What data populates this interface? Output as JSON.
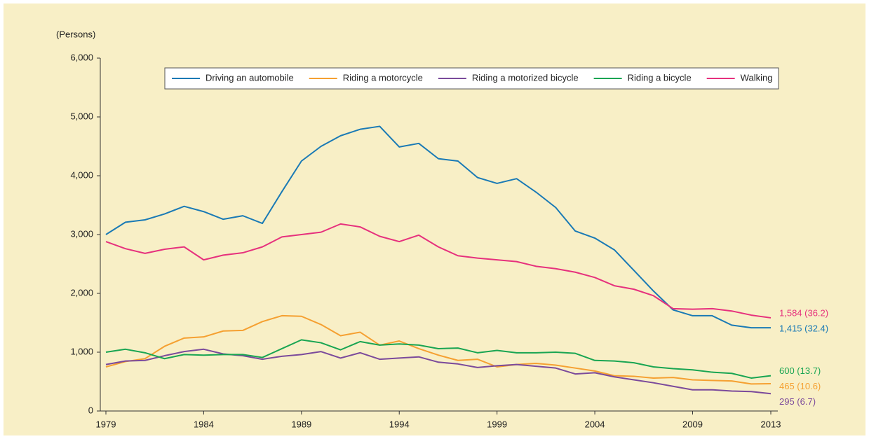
{
  "chart_data": {
    "type": "line",
    "y_label": "(Persons)",
    "x": [
      1979,
      1980,
      1981,
      1982,
      1983,
      1984,
      1985,
      1986,
      1987,
      1988,
      1989,
      1990,
      1991,
      1992,
      1993,
      1994,
      1995,
      1996,
      1997,
      1998,
      1999,
      2000,
      2001,
      2002,
      2003,
      2004,
      2005,
      2006,
      2007,
      2008,
      2009,
      2010,
      2011,
      2012,
      2013
    ],
    "xlim": [
      1979,
      2013
    ],
    "xticks": [
      1979,
      1984,
      1989,
      1994,
      1999,
      2004,
      2009,
      2013
    ],
    "ylim": [
      0,
      6000
    ],
    "yticks": [
      0,
      {
        "value": 1000,
        "label": "1,000"
      },
      {
        "value": 2000,
        "label": "2,000"
      },
      {
        "value": 3000,
        "label": "3,000"
      },
      {
        "value": 4000,
        "label": "4,000"
      },
      {
        "value": 5000,
        "label": "5,000"
      },
      {
        "value": 6000,
        "label": "6,000"
      }
    ],
    "legend": "top",
    "series": [
      {
        "name": "Driving an automobile",
        "color": "#1a7ab5",
        "end_label": "1,415 (32.4)",
        "values": [
          3000,
          3210,
          3250,
          3350,
          3480,
          3390,
          3260,
          3320,
          3190,
          3730,
          4250,
          4500,
          4680,
          4790,
          4840,
          4490,
          4550,
          4290,
          4250,
          3970,
          3870,
          3950,
          3720,
          3460,
          3060,
          2940,
          2740,
          2390,
          2040,
          1720,
          1620,
          1620,
          1460,
          1415,
          1415
        ]
      },
      {
        "name": "Riding a motorcycle",
        "color": "#f5a031",
        "end_label": "465 (10.6)",
        "values": [
          750,
          840,
          890,
          1100,
          1240,
          1260,
          1360,
          1370,
          1520,
          1620,
          1610,
          1470,
          1280,
          1340,
          1120,
          1190,
          1060,
          950,
          860,
          880,
          750,
          790,
          810,
          780,
          730,
          680,
          600,
          590,
          560,
          570,
          530,
          520,
          510,
          460,
          465
        ]
      },
      {
        "name": "Riding a motorized bicycle",
        "color": "#7b4a9b",
        "end_label": "295 (6.7)",
        "values": [
          790,
          850,
          860,
          940,
          1010,
          1050,
          970,
          940,
          880,
          930,
          960,
          1010,
          900,
          990,
          880,
          900,
          920,
          830,
          800,
          740,
          770,
          790,
          760,
          730,
          630,
          650,
          580,
          530,
          480,
          420,
          360,
          360,
          340,
          330,
          295
        ]
      },
      {
        "name": "Riding a bicycle",
        "color": "#19a552",
        "end_label": "600 (13.7)",
        "values": [
          1000,
          1050,
          990,
          890,
          960,
          950,
          960,
          960,
          910,
          1060,
          1210,
          1160,
          1040,
          1180,
          1120,
          1140,
          1120,
          1060,
          1070,
          990,
          1030,
          990,
          990,
          1000,
          980,
          860,
          850,
          820,
          750,
          720,
          700,
          660,
          640,
          560,
          600
        ]
      },
      {
        "name": "Walking",
        "color": "#e6317d",
        "end_label": "1,584 (36.2)",
        "values": [
          2880,
          2760,
          2680,
          2750,
          2790,
          2570,
          2650,
          2690,
          2790,
          2960,
          3000,
          3040,
          3180,
          3130,
          2970,
          2880,
          2990,
          2790,
          2640,
          2600,
          2570,
          2540,
          2460,
          2420,
          2360,
          2270,
          2130,
          2070,
          1960,
          1740,
          1730,
          1740,
          1700,
          1630,
          1584
        ]
      }
    ]
  }
}
